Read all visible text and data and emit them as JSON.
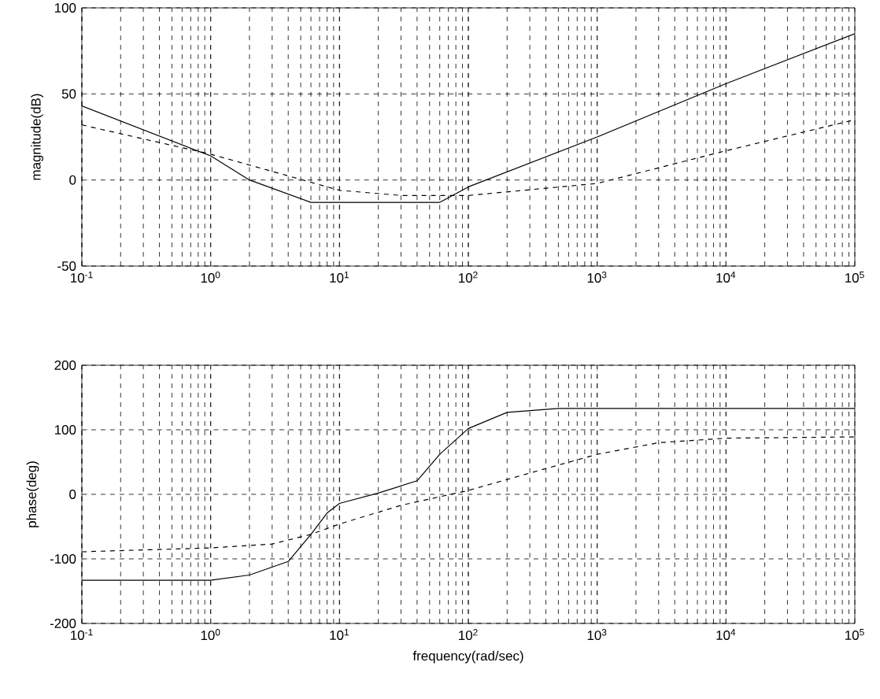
{
  "chart_data": [
    {
      "type": "line",
      "ylabel": "magnitude(dB)",
      "log": "x",
      "grid": true,
      "xlim": [
        0.1,
        100000
      ],
      "ylim": [
        -50,
        100
      ],
      "yticks": [
        -50,
        0,
        50,
        100
      ],
      "xticks": [
        {
          "value": 0.1,
          "label": "10$^{-1}$"
        },
        {
          "value": 1,
          "label": "10$^{0}$"
        },
        {
          "value": 10,
          "label": "10$^{1}$"
        },
        {
          "value": 100,
          "label": "10$^{2}$"
        },
        {
          "value": 1000,
          "label": "10$^{3}$"
        },
        {
          "value": 10000,
          "label": "10$^{4}$"
        },
        {
          "value": 100000,
          "label": "10$^{5}$"
        }
      ],
      "series": [
        {
          "color": "#000000",
          "line_style": "solid",
          "x": [
            0.1,
            1,
            2,
            6,
            10,
            50,
            60,
            100,
            1000,
            10000,
            100000
          ],
          "values": [
            43,
            14,
            0,
            -13,
            -13,
            -13,
            -13,
            -4,
            25,
            56,
            85
          ]
        },
        {
          "color": "#000000",
          "line_style": "dashed",
          "x": [
            0.1,
            1,
            3,
            10,
            30,
            100,
            1000,
            10000,
            100000
          ],
          "values": [
            32,
            15,
            5,
            -6,
            -9,
            -9,
            -2,
            17,
            35
          ]
        }
      ]
    },
    {
      "type": "line",
      "ylabel": "phase(deg)",
      "xlabel": "frequency(rad/sec)",
      "log": "x",
      "grid": true,
      "xlim": [
        0.1,
        100000
      ],
      "ylim": [
        -200,
        200
      ],
      "yticks": [
        -200,
        -100,
        0,
        100,
        200
      ],
      "xticks": [
        {
          "value": 0.1,
          "label": "10$^{-1}$"
        },
        {
          "value": 1,
          "label": "10$^{0}$"
        },
        {
          "value": 10,
          "label": "10$^{1}$"
        },
        {
          "value": 100,
          "label": "10$^{2}$"
        },
        {
          "value": 1000,
          "label": "10$^{3}$"
        },
        {
          "value": 10000,
          "label": "10$^{4}$"
        },
        {
          "value": 100000,
          "label": "10$^{5}$"
        }
      ],
      "series": [
        {
          "color": "#000000",
          "line_style": "solid",
          "x": [
            0.1,
            1,
            2,
            4,
            6,
            8,
            10,
            20,
            40,
            60,
            100,
            200,
            500,
            100000
          ],
          "values": [
            -133,
            -133,
            -125,
            -104,
            -62,
            -29,
            -14,
            2,
            21,
            62,
            102,
            127,
            133,
            133
          ]
        },
        {
          "color": "#000000",
          "line_style": "dashed",
          "x": [
            0.1,
            1,
            3,
            6,
            10,
            30,
            100,
            300,
            1000,
            3000,
            10000,
            100000
          ],
          "values": [
            -89,
            -83,
            -77,
            -62,
            -46,
            -17,
            6,
            33,
            62,
            80,
            87,
            89
          ]
        }
      ]
    }
  ]
}
